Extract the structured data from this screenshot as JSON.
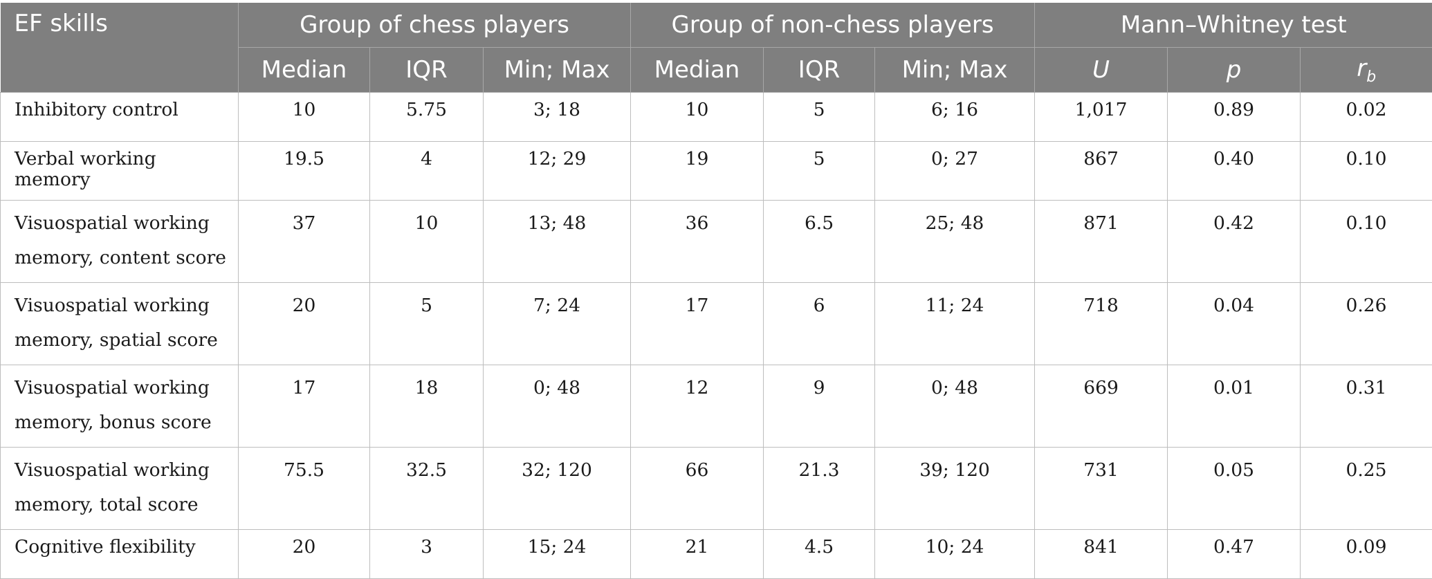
{
  "table": {
    "headers": {
      "skills": "EF skills",
      "chess_group": "Group of chess players",
      "non_chess_group": "Group of non-chess players",
      "test": "Mann–Whitney test",
      "median": "Median",
      "iqr": "IQR",
      "minmax": "Min; Max",
      "u": "U",
      "p": "p",
      "rb_base": "r",
      "rb_sub": "b"
    },
    "rows": [
      {
        "skill_lines": [
          "Inhibitory control"
        ],
        "chess": {
          "median": "10",
          "iqr": "5.75",
          "minmax": "3; 18"
        },
        "non_chess": {
          "median": "10",
          "iqr": "5",
          "minmax": "6; 16"
        },
        "test": {
          "u": "1,017",
          "p": "0.89",
          "rb": "0.02"
        }
      },
      {
        "skill_lines": [
          "Verbal working memory"
        ],
        "chess": {
          "median": "19.5",
          "iqr": "4",
          "minmax": "12; 29"
        },
        "non_chess": {
          "median": "19",
          "iqr": "5",
          "minmax": "0; 27"
        },
        "test": {
          "u": "867",
          "p": "0.40",
          "rb": "0.10"
        }
      },
      {
        "skill_lines": [
          "Visuospatial working",
          "memory, content score"
        ],
        "chess": {
          "median": "37",
          "iqr": "10",
          "minmax": "13; 48"
        },
        "non_chess": {
          "median": "36",
          "iqr": "6.5",
          "minmax": "25; 48"
        },
        "test": {
          "u": "871",
          "p": "0.42",
          "rb": "0.10"
        }
      },
      {
        "skill_lines": [
          "Visuospatial working",
          "memory, spatial score"
        ],
        "chess": {
          "median": "20",
          "iqr": "5",
          "minmax": "7; 24"
        },
        "non_chess": {
          "median": "17",
          "iqr": "6",
          "minmax": "11; 24"
        },
        "test": {
          "u": "718",
          "p": "0.04",
          "rb": "0.26"
        }
      },
      {
        "skill_lines": [
          "Visuospatial working",
          "memory, bonus score"
        ],
        "chess": {
          "median": "17",
          "iqr": "18",
          "minmax": "0; 48"
        },
        "non_chess": {
          "median": "12",
          "iqr": "9",
          "minmax": "0; 48"
        },
        "test": {
          "u": "669",
          "p": "0.01",
          "rb": "0.31"
        }
      },
      {
        "skill_lines": [
          "Visuospatial working",
          "memory, total score"
        ],
        "chess": {
          "median": "75.5",
          "iqr": "32.5",
          "minmax": "32; 120"
        },
        "non_chess": {
          "median": "66",
          "iqr": "21.3",
          "minmax": "39; 120"
        },
        "test": {
          "u": "731",
          "p": "0.05",
          "rb": "0.25"
        }
      },
      {
        "skill_lines": [
          "Cognitive flexibility"
        ],
        "chess": {
          "median": "20",
          "iqr": "3",
          "minmax": "15; 24"
        },
        "non_chess": {
          "median": "21",
          "iqr": "4.5",
          "minmax": "10; 24"
        },
        "test": {
          "u": "841",
          "p": "0.47",
          "rb": "0.09"
        }
      }
    ]
  },
  "colors": {
    "header_bg": "#7f7f7f",
    "header_text": "#ffffff",
    "grid_line": "#bdbdbd",
    "body_text": "#1a1a1a"
  }
}
